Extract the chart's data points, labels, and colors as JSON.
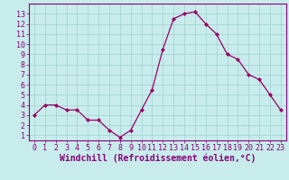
{
  "x": [
    0,
    1,
    2,
    3,
    4,
    5,
    6,
    7,
    8,
    9,
    10,
    11,
    12,
    13,
    14,
    15,
    16,
    17,
    18,
    19,
    20,
    21,
    22,
    23
  ],
  "y": [
    3.0,
    4.0,
    4.0,
    3.5,
    3.5,
    2.5,
    2.5,
    1.5,
    0.8,
    1.5,
    3.5,
    5.5,
    9.5,
    12.5,
    13.0,
    13.2,
    12.0,
    11.0,
    9.0,
    8.5,
    7.0,
    6.5,
    5.0,
    3.5
  ],
  "line_color": "#990066",
  "marker": "D",
  "markersize": 2,
  "bg_color": "#c8ecec",
  "grid_color": "#a0d0d0",
  "xlabel": "Windchill (Refroidissement éolien,°C)",
  "xlim": [
    -0.5,
    23.5
  ],
  "ylim": [
    0.5,
    14
  ],
  "yticks": [
    1,
    2,
    3,
    4,
    5,
    6,
    7,
    8,
    9,
    10,
    11,
    12,
    13
  ],
  "xticks": [
    0,
    1,
    2,
    3,
    4,
    5,
    6,
    7,
    8,
    9,
    10,
    11,
    12,
    13,
    14,
    15,
    16,
    17,
    18,
    19,
    20,
    21,
    22,
    23
  ],
  "tick_color": "#880077",
  "xlabel_fontsize": 7.0,
  "tick_fontsize": 6.0,
  "spine_color": "#880077"
}
